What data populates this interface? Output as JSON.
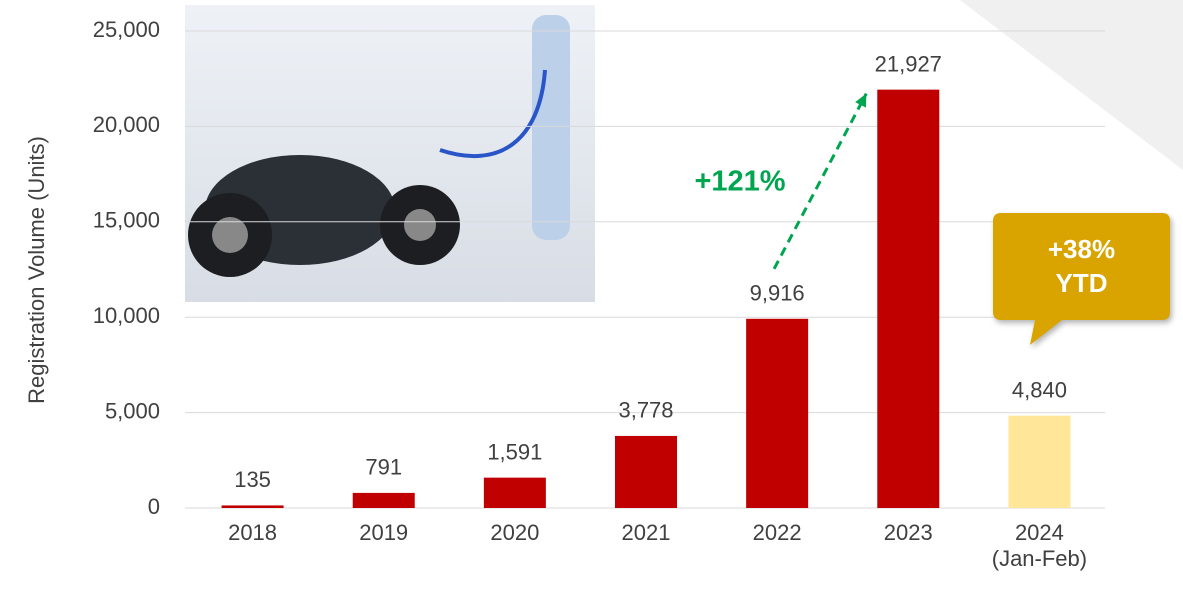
{
  "chart_data": {
    "type": "bar",
    "y_axis_label": "Registration Volume (Units)",
    "categories": [
      "2018",
      "2019",
      "2020",
      "2021",
      "2022",
      "2023",
      "2024\n(Jan-Feb)"
    ],
    "values": [
      135,
      791,
      1591,
      3778,
      9916,
      21927,
      4840
    ],
    "value_labels": [
      "135",
      "791",
      "1,591",
      "3,778",
      "9,916",
      "21,927",
      "4,840"
    ],
    "colors": [
      "#c00000",
      "#c00000",
      "#c00000",
      "#c00000",
      "#c00000",
      "#c00000",
      "#ffe699"
    ],
    "ylim": [
      0,
      25000
    ],
    "yticks": [
      0,
      {
        "value": 5000,
        "label": "5,000"
      },
      {
        "value": 10000,
        "label": "10,000"
      },
      {
        "value": 15000,
        "label": "15,000"
      },
      {
        "value": 20000,
        "label": "20,000"
      },
      {
        "value": 25000,
        "label": "25,000"
      }
    ],
    "grid": true,
    "annotations": [
      {
        "text": "+121%",
        "color": "#00a550"
      },
      {
        "text": "+38%\nYTD",
        "color": "#d9a400"
      }
    ]
  }
}
